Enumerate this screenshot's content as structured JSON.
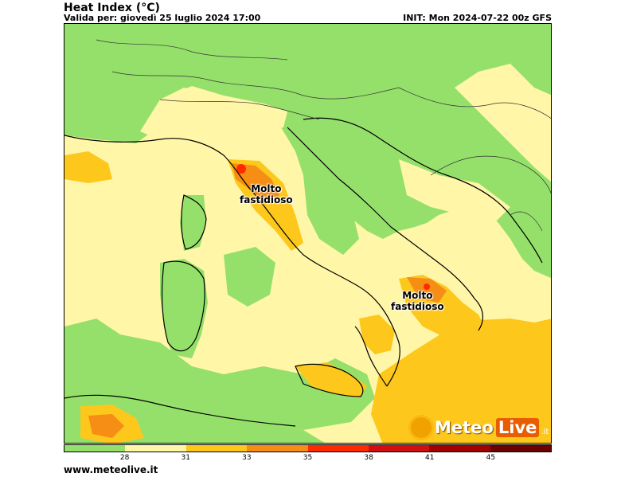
{
  "header": {
    "title": "Heat Index (°C)",
    "valid": "Valida per: giovedì 25 luglio 2024 17:00",
    "init": "INIT: Mon 2024-07-22 00z GFS"
  },
  "map": {
    "annotations": [
      {
        "line1": "Molto",
        "line2": "fastidioso"
      },
      {
        "line1": "Molto",
        "line2": "fastidioso"
      }
    ]
  },
  "legend": {
    "colors": [
      "#95e06b",
      "#fff6a8",
      "#fdc71c",
      "#f68e15",
      "#ff2a00",
      "#d01010",
      "#a30000",
      "#6a0000"
    ],
    "ticks": [
      "28",
      "31",
      "33",
      "35",
      "38",
      "41",
      "45"
    ]
  },
  "logo": {
    "part1": "Meteo",
    "part2": "Live",
    "suffix": ".it"
  },
  "footer": {
    "url": "www.meteolive.it"
  }
}
